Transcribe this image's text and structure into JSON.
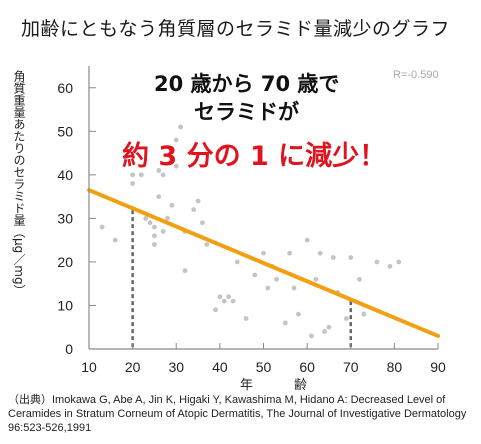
{
  "title": "加齢にともなう角質層のセラミド量減少のグラフ",
  "headline": {
    "line1": "20 歳から 70 歳で",
    "line2": "セラミドが",
    "line3": "約 3 分の 1 に減少！"
  },
  "correlation": "R=-0.590",
  "source": "（出典）Imokawa G, Abe A, Jin K, Higaki Y, Kawashima M, Hidano A: Decreased Level of Ceramides in Stratum Corneum of Atopic Dermatitis, The Journal of Investigative Dermatology 96:523-526,1991",
  "colors": {
    "trend_line": "#f0a010",
    "points": "#c4c4c4",
    "axis": "#8a8a8a",
    "highlight_red": "#e0141e",
    "reference_line": "#666666"
  },
  "chart_data": {
    "type": "scatter",
    "xlabel": "年　齢",
    "ylabel": "角質重量あたりのセラミド量（μg／mg）",
    "xlim": [
      10,
      90
    ],
    "ylim": [
      0,
      65
    ],
    "x_ticks": [
      10,
      20,
      30,
      40,
      50,
      60,
      70,
      80,
      90
    ],
    "y_ticks": [
      0,
      10,
      20,
      30,
      40,
      50,
      60
    ],
    "grid": false,
    "points": [
      [
        13,
        28
      ],
      [
        16,
        25
      ],
      [
        20,
        40
      ],
      [
        20,
        38
      ],
      [
        22,
        40
      ],
      [
        23,
        30
      ],
      [
        24,
        29
      ],
      [
        25,
        28
      ],
      [
        25,
        26
      ],
      [
        25,
        24
      ],
      [
        26,
        41
      ],
      [
        26,
        35
      ],
      [
        27,
        40
      ],
      [
        27,
        27
      ],
      [
        28,
        30
      ],
      [
        29,
        33
      ],
      [
        30,
        48
      ],
      [
        30,
        42
      ],
      [
        31,
        51
      ],
      [
        32,
        27
      ],
      [
        32,
        18
      ],
      [
        34,
        32
      ],
      [
        35,
        34
      ],
      [
        36,
        29
      ],
      [
        37,
        24
      ],
      [
        39,
        9
      ],
      [
        40,
        12
      ],
      [
        41,
        11
      ],
      [
        42,
        12
      ],
      [
        43,
        11
      ],
      [
        44,
        20
      ],
      [
        46,
        7
      ],
      [
        48,
        17
      ],
      [
        50,
        22
      ],
      [
        51,
        14
      ],
      [
        52,
        19
      ],
      [
        53,
        16
      ],
      [
        55,
        6
      ],
      [
        56,
        22
      ],
      [
        57,
        14
      ],
      [
        58,
        8
      ],
      [
        60,
        25
      ],
      [
        61,
        3
      ],
      [
        62,
        16
      ],
      [
        63,
        22
      ],
      [
        64,
        4
      ],
      [
        65,
        5
      ],
      [
        66,
        21
      ],
      [
        67,
        13
      ],
      [
        69,
        7
      ],
      [
        70,
        21
      ],
      [
        72,
        16
      ],
      [
        76,
        20
      ],
      [
        79,
        19
      ],
      [
        81,
        20
      ],
      [
        73,
        8
      ]
    ],
    "trend_line": {
      "from": [
        10,
        36.5
      ],
      "to": [
        90,
        3
      ]
    },
    "reference_markers": [
      {
        "x": 20,
        "y": 31.9
      },
      {
        "x": 70,
        "y": 11.0
      }
    ]
  }
}
